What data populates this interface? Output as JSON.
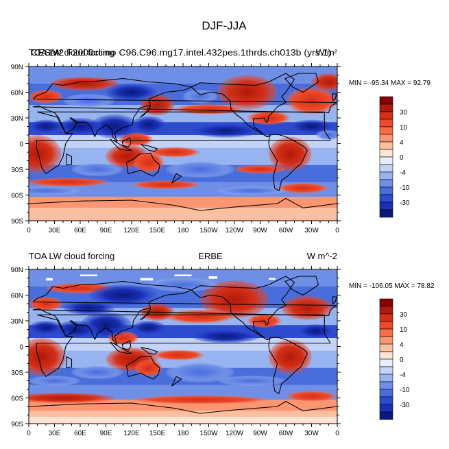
{
  "page_title": "DJF-JJA",
  "chart_data": [
    {
      "type": "heatmap",
      "map_projection": "cylindrical equidistant (longitude 0 to 360)",
      "title_left": "TOA LW cloud forcing",
      "title_overlap": "CESM2 F2000climo C96.C96.mg17.intel.432pes.1thrds.ch013b (yrs 1)",
      "title_right": "W/m²",
      "stats": "MIN = -95.34 MAX =  92.79",
      "xlabels": [
        "0",
        "30E",
        "60E",
        "90E",
        "120E",
        "150E",
        "180",
        "150W",
        "120W",
        "90W",
        "60W",
        "30W",
        "0"
      ],
      "ylabels": [
        "90N",
        "60N",
        "30N",
        "0",
        "30S",
        "60S",
        "90S"
      ],
      "colorbar_labels": [
        "30",
        "10",
        "4",
        "0",
        "-4",
        "-10",
        "-30"
      ],
      "min": -95.34,
      "max": 92.79
    },
    {
      "type": "heatmap",
      "map_projection": "cylindrical equidistant (longitude 0 to 360)",
      "title_left": "TOA LW cloud forcing",
      "title_center": "ERBE",
      "title_right": "W m^-2",
      "stats": "MIN = -106.05 MAX =  78.82",
      "xlabels": [
        "0",
        "30E",
        "60E",
        "90E",
        "120E",
        "150E",
        "180",
        "150W",
        "120W",
        "90W",
        "60W",
        "30W",
        "0"
      ],
      "ylabels": [
        "90N",
        "60N",
        "30N",
        "0",
        "30S",
        "60S",
        "90S"
      ],
      "colorbar_labels": [
        "30",
        "10",
        "4",
        "0",
        "-4",
        "-10",
        "-30"
      ],
      "min": -106.05,
      "max": 78.82
    }
  ],
  "colorbar_colors": [
    "#8b0000",
    "#b01a0a",
    "#d42f17",
    "#ee4a2a",
    "#f86c48",
    "#fb9672",
    "#fcbfa0",
    "#fde4d4",
    "#e8eefa",
    "#c2d3f6",
    "#98b4f0",
    "#6f8fe7",
    "#4a6ddc",
    "#2d4bcf",
    "#1a2fb4",
    "#0a1a7a"
  ]
}
